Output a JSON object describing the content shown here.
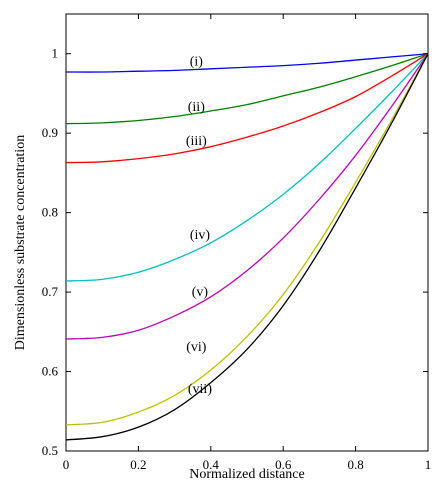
{
  "chart_data": {
    "type": "line",
    "title": "",
    "xlabel": "Normalized distance",
    "ylabel": "Dimensionless substrate concentration",
    "xlim": [
      0,
      1
    ],
    "ylim": [
      0.5,
      1.05
    ],
    "xticks": [
      0,
      0.2,
      0.4,
      0.6,
      0.8,
      1
    ],
    "yticks": [
      0.5,
      0.6,
      0.7,
      0.8,
      0.9,
      1
    ],
    "xtick_labels": [
      "0",
      "0.2",
      "0.4",
      "0.6",
      "0.8",
      "1"
    ],
    "ytick_labels": [
      "0.5",
      "0.6",
      "0.7",
      "0.8",
      "0.9",
      "1"
    ],
    "grid": false,
    "x": [
      0,
      0.1,
      0.2,
      0.3,
      0.4,
      0.5,
      0.6,
      0.7,
      0.8,
      0.9,
      1.0
    ],
    "series": [
      {
        "label": "(i)",
        "color": "#0000ff",
        "values": [
          0.977,
          0.977,
          0.978,
          0.979,
          0.981,
          0.983,
          0.985,
          0.988,
          0.992,
          0.996,
          1.0
        ],
        "label_at": [
          0.36,
          0.985
        ]
      },
      {
        "label": "(ii)",
        "color": "#008000",
        "values": [
          0.912,
          0.913,
          0.916,
          0.921,
          0.928,
          0.936,
          0.947,
          0.958,
          0.971,
          0.985,
          1.0
        ],
        "label_at": [
          0.36,
          0.928
        ]
      },
      {
        "label": "(iii)",
        "color": "#ff0000",
        "values": [
          0.863,
          0.864,
          0.868,
          0.874,
          0.883,
          0.895,
          0.909,
          0.926,
          0.946,
          0.972,
          1.0
        ],
        "label_at": [
          0.36,
          0.885
        ]
      },
      {
        "label": "(iv)",
        "color": "#00bfbf",
        "values": [
          0.714,
          0.716,
          0.725,
          0.741,
          0.762,
          0.79,
          0.823,
          0.862,
          0.906,
          0.952,
          1.0
        ],
        "label_at": [
          0.37,
          0.767
        ]
      },
      {
        "label": "(v)",
        "color": "#bf00bf",
        "values": [
          0.641,
          0.643,
          0.652,
          0.67,
          0.694,
          0.727,
          0.768,
          0.817,
          0.872,
          0.934,
          1.0
        ],
        "label_at": [
          0.37,
          0.695
        ]
      },
      {
        "label": "(vi)",
        "color": "#bfbf00",
        "values": [
          0.533,
          0.536,
          0.549,
          0.57,
          0.602,
          0.644,
          0.697,
          0.763,
          0.838,
          0.917,
          1.0
        ],
        "label_at": [
          0.36,
          0.626
        ]
      },
      {
        "label": "(vii)",
        "color": "#000000",
        "values": [
          0.514,
          0.518,
          0.53,
          0.552,
          0.586,
          0.628,
          0.683,
          0.752,
          0.831,
          0.913,
          1.0
        ],
        "label_at": [
          0.37,
          0.573
        ]
      }
    ]
  }
}
